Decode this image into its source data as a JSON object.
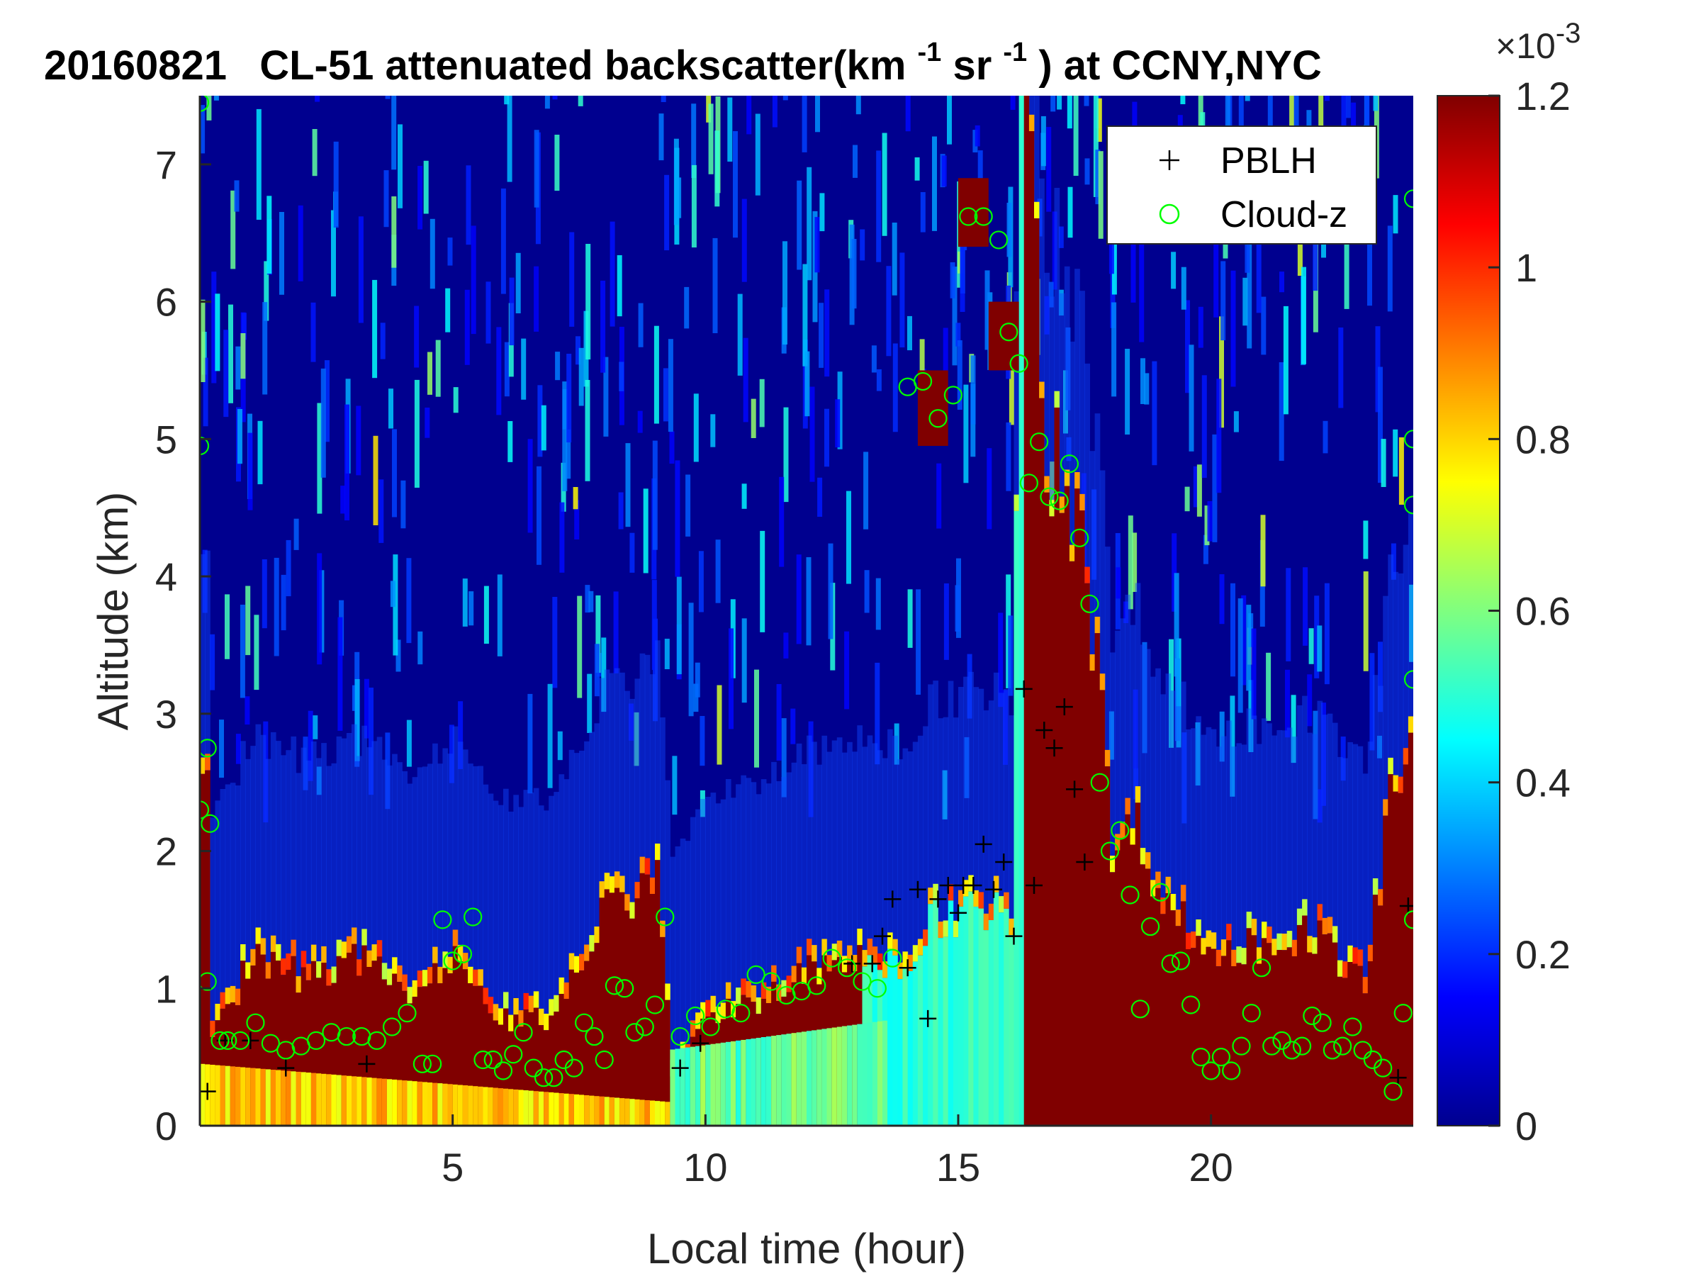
{
  "chart_data": {
    "type": "heatmap",
    "title": {
      "date": "20160821",
      "main": "CL-51 attenuated backscatter(km",
      "sup1": "-1",
      "mid": "sr",
      "sup2": "-1",
      "end": ") at CCNY,NYC"
    },
    "xlabel": "Local time (hour)",
    "ylabel": "Altitude (km)",
    "xlim": [
      0,
      24
    ],
    "ylim": [
      0,
      7.5
    ],
    "xticks": [
      5,
      10,
      15,
      20
    ],
    "yticks": [
      0,
      1,
      2,
      3,
      4,
      5,
      6,
      7
    ],
    "colorbar": {
      "colormap": "jet",
      "range": [
        0,
        0.0012
      ],
      "ticks": [
        0,
        0.2,
        0.4,
        0.6,
        0.8,
        1,
        1.2
      ],
      "tick_labels": [
        "0",
        "0.2",
        "0.4",
        "0.6",
        "0.8",
        "1",
        "1.2"
      ],
      "exponent": "10",
      "exponent_power": "-3",
      "exponent_prefix": "×"
    },
    "legend": {
      "position": "top-right",
      "entries": [
        {
          "label": "PBLH",
          "marker": "+",
          "color": "#000000"
        },
        {
          "label": "Cloud-z",
          "marker": "o",
          "color": "#00ff00"
        }
      ]
    },
    "background_profile": {
      "hours": [
        0.2,
        1,
        2,
        3,
        4,
        5,
        6,
        7,
        8,
        9,
        9.3,
        10,
        11,
        12,
        13,
        13.8,
        14.5,
        15.3,
        16,
        16.2,
        16.8,
        17.4,
        18,
        18.6,
        19,
        20,
        21,
        22,
        23,
        23.6,
        24
      ],
      "top_km": [
        0.6,
        1.2,
        1.05,
        1.2,
        0.95,
        1.15,
        0.75,
        0.75,
        1.6,
        1.7,
        0.35,
        0.75,
        0.9,
        1.1,
        1.15,
        1.15,
        1.5,
        1.5,
        1.5,
        7.3,
        4.6,
        4.5,
        2.0,
        2.1,
        1.6,
        1.2,
        1.3,
        1.35,
        1.0,
        2.5,
        2.5
      ]
    },
    "series": [
      {
        "name": "PBLH",
        "marker": "+",
        "x": [
          0.15,
          0.5,
          1.0,
          1.7,
          3.3,
          9.5,
          9.9,
          12.9,
          13.3,
          13.5,
          13.7,
          14.0,
          14.2,
          14.4,
          14.6,
          14.8,
          15.0,
          15.1,
          15.3,
          15.5,
          15.7,
          15.9,
          16.1,
          16.3,
          16.5,
          16.7,
          16.9,
          17.1,
          17.3,
          17.5,
          23.7,
          23.9
        ],
        "y": [
          0.25,
          0.62,
          0.62,
          0.42,
          0.45,
          0.42,
          0.6,
          1.18,
          1.18,
          1.38,
          1.65,
          1.15,
          1.72,
          0.78,
          1.65,
          1.75,
          1.55,
          1.75,
          1.75,
          2.05,
          1.72,
          1.92,
          1.38,
          3.18,
          1.75,
          2.88,
          2.75,
          3.05,
          2.45,
          1.92,
          0.35,
          1.6
        ]
      },
      {
        "name": "Cloud-z",
        "marker": "o",
        "x": [
          0.0,
          0.0,
          0.0,
          0.15,
          0.15,
          0.2,
          0.4,
          0.55,
          0.8,
          1.1,
          1.4,
          1.7,
          2.0,
          2.3,
          2.6,
          2.9,
          3.2,
          3.5,
          3.8,
          4.1,
          4.4,
          4.6,
          4.8,
          5.0,
          5.2,
          5.4,
          5.6,
          5.8,
          6.0,
          6.2,
          6.4,
          6.6,
          6.8,
          7.0,
          7.2,
          7.4,
          7.6,
          7.8,
          8.0,
          8.2,
          8.4,
          8.6,
          8.8,
          9.0,
          9.2,
          9.5,
          9.8,
          10.1,
          10.4,
          10.7,
          11.0,
          11.3,
          11.6,
          11.9,
          12.2,
          12.5,
          12.8,
          13.1,
          13.4,
          13.7,
          14.0,
          14.3,
          14.6,
          14.9,
          15.2,
          15.5,
          15.8,
          16.0,
          16.2,
          16.4,
          16.6,
          16.8,
          17.0,
          17.2,
          17.4,
          17.6,
          17.8,
          18.0,
          18.2,
          18.4,
          18.6,
          18.8,
          19.0,
          19.2,
          19.4,
          19.6,
          19.8,
          20.0,
          20.2,
          20.4,
          20.6,
          20.8,
          21.0,
          21.2,
          21.4,
          21.6,
          21.8,
          22.0,
          22.2,
          22.4,
          22.6,
          22.8,
          23.0,
          23.2,
          23.4,
          23.6,
          23.8,
          24.0,
          24.0,
          24.0,
          24.0,
          24.0
        ],
        "y": [
          7.45,
          4.95,
          2.3,
          2.75,
          1.05,
          2.2,
          0.62,
          0.62,
          0.62,
          0.75,
          0.6,
          0.55,
          0.58,
          0.62,
          0.68,
          0.65,
          0.65,
          0.62,
          0.72,
          0.82,
          0.45,
          0.45,
          1.5,
          1.2,
          1.25,
          1.52,
          0.48,
          0.48,
          0.4,
          0.52,
          0.68,
          0.42,
          0.35,
          0.35,
          0.48,
          0.42,
          0.75,
          0.65,
          0.48,
          1.02,
          1.0,
          0.68,
          0.72,
          0.88,
          1.52,
          0.65,
          0.8,
          0.72,
          0.85,
          0.82,
          1.1,
          1.05,
          0.95,
          0.98,
          1.02,
          1.22,
          1.15,
          1.05,
          1.0,
          1.22,
          5.38,
          5.42,
          5.15,
          5.32,
          6.62,
          6.62,
          6.45,
          5.78,
          5.55,
          4.68,
          4.98,
          4.58,
          4.55,
          4.82,
          4.28,
          3.8,
          2.5,
          2.0,
          2.15,
          1.68,
          0.85,
          1.45,
          1.7,
          1.18,
          1.2,
          0.88,
          0.5,
          0.4,
          0.5,
          0.4,
          0.58,
          0.82,
          1.15,
          0.58,
          0.62,
          0.55,
          0.58,
          0.8,
          0.75,
          0.55,
          0.58,
          0.72,
          0.55,
          0.48,
          0.42,
          0.25,
          0.82,
          1.5,
          3.25,
          4.52,
          5.0,
          6.75
        ]
      }
    ]
  }
}
